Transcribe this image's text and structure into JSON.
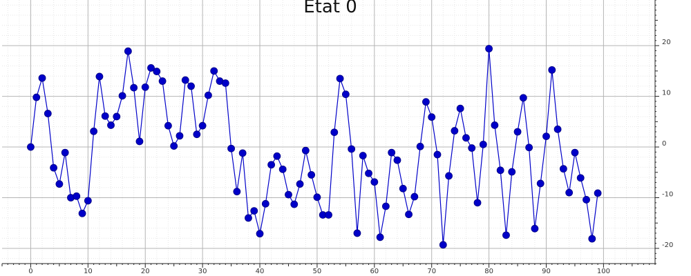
{
  "chart_data": {
    "type": "line",
    "title": "Etat 0",
    "xlabel": "",
    "ylabel": "",
    "xlim": [
      -5,
      109
    ],
    "ylim": [
      -23,
      29
    ],
    "x_ticks": [
      0,
      10,
      20,
      30,
      40,
      50,
      60,
      70,
      80,
      90,
      100
    ],
    "y_ticks": [
      -20,
      -10,
      0,
      10,
      20
    ],
    "grid": true,
    "minor_grid": true,
    "y_axis_position": "right",
    "legend": "none",
    "series": [
      {
        "color": "#0000c8",
        "marker": "circle",
        "x": [
          0,
          1,
          2,
          3,
          4,
          5,
          6,
          7,
          8,
          9,
          10,
          11,
          12,
          13,
          14,
          15,
          16,
          17,
          18,
          19,
          20,
          21,
          22,
          23,
          24,
          25,
          26,
          27,
          28,
          29,
          30,
          31,
          32,
          33,
          34,
          35,
          36,
          37,
          38,
          39,
          40,
          41,
          42,
          43,
          44,
          45,
          46,
          47,
          48,
          49,
          50,
          51,
          52,
          53,
          54,
          55,
          56,
          57,
          58,
          59,
          60,
          61,
          62,
          63,
          64,
          65,
          66,
          67,
          68,
          69,
          70,
          71,
          72,
          73,
          74,
          75,
          76,
          77,
          78,
          79,
          80,
          81,
          82,
          83,
          84,
          85,
          86,
          87,
          88,
          89,
          90,
          91,
          92,
          93,
          94,
          95,
          96,
          97,
          98,
          99
        ],
        "y": [
          0,
          9.8,
          13.6,
          6.6,
          -4.1,
          -7.3,
          -1.1,
          -10.0,
          -9.7,
          -13.1,
          -10.6,
          3.1,
          13.9,
          6.1,
          4.3,
          6.0,
          10.1,
          18.9,
          11.7,
          1.1,
          11.8,
          15.6,
          14.9,
          13.0,
          4.2,
          0.2,
          2.2,
          13.2,
          12.0,
          2.5,
          4.2,
          10.2,
          15.0,
          13.0,
          12.6,
          -0.3,
          -8.8,
          -1.2,
          -14.0,
          -12.6,
          -17.1,
          -11.2,
          -3.5,
          -1.8,
          -4.4,
          -9.4,
          -11.3,
          -7.3,
          -0.7,
          -5.5,
          -9.9,
          -13.4,
          -13.4,
          2.9,
          13.5,
          10.4,
          -0.4,
          -17.0,
          -1.7,
          -5.2,
          -6.9,
          -17.8,
          -11.7,
          -1.1,
          -2.6,
          -8.2,
          -13.3,
          -9.8,
          0.1,
          8.9,
          5.9,
          -1.5,
          -19.3,
          -5.7,
          3.2,
          7.6,
          1.8,
          -0.2,
          -11.0,
          0.5,
          19.4,
          4.3,
          -4.6,
          -17.4,
          -4.9,
          3.0,
          9.7,
          -0.1,
          -16.1,
          -7.2,
          2.1,
          15.2,
          3.5,
          -4.3,
          -9.0,
          -1.1,
          -6.1,
          -10.4,
          -18.1,
          -9.1
        ]
      }
    ]
  }
}
